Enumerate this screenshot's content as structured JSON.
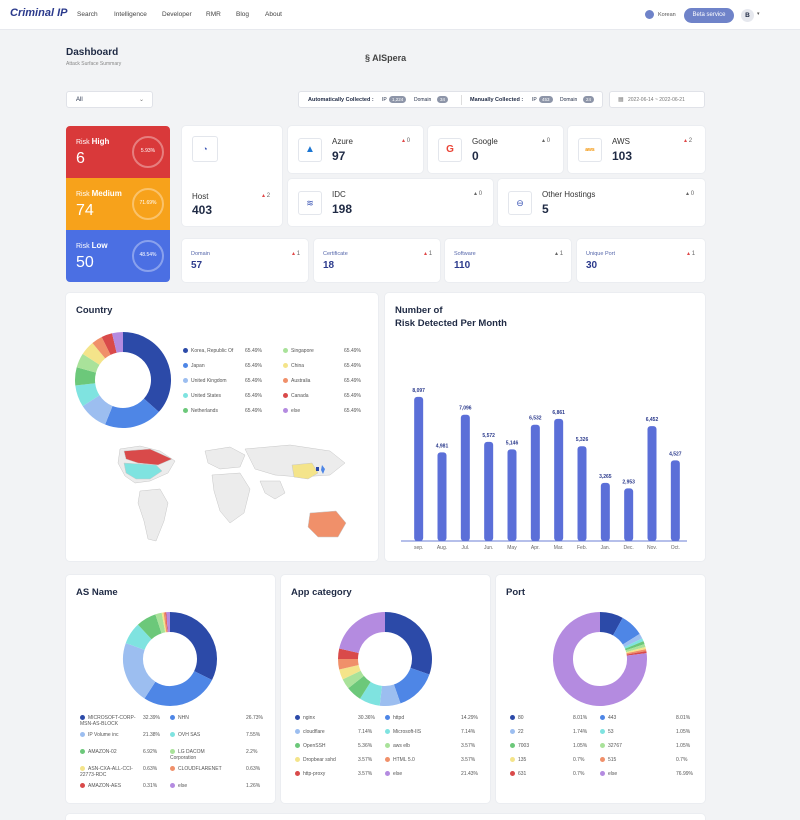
{
  "nav": {
    "logo": "Criminal IP",
    "links": [
      "Search",
      "Intelligence",
      "Developer",
      "RMR",
      "Blog",
      "About"
    ],
    "language": "Korean",
    "beta_button": "Beta service",
    "avatar": "B"
  },
  "header": {
    "title": "Dashboard",
    "subtitle": "Attack Surface Summary",
    "brand": "AISpera",
    "filter_value": "All",
    "auto_label": "Automatically Collected :",
    "auto_ip_label": "IP",
    "auto_ip": "1,224",
    "auto_domain_label": "Domain",
    "auto_domain": "34",
    "manual_label": "Manually Collected :",
    "manual_ip_label": "IP",
    "manual_ip": "453",
    "manual_domain_label": "Domain",
    "manual_domain": "24",
    "date_range": "2022-06-14 ~ 2022-06-21"
  },
  "risk": {
    "high": {
      "prefix": "Risk",
      "label": "High",
      "value": "6",
      "pct": "5.93%",
      "color": "#d9393a"
    },
    "medium": {
      "prefix": "Risk",
      "label": "Medium",
      "value": "74",
      "pct": "71.69%",
      "color": "#f7a21b"
    },
    "low": {
      "prefix": "Risk",
      "label": "Low",
      "value": "50",
      "pct": "48.54%",
      "color": "#4b6fe3"
    }
  },
  "assets": {
    "host": {
      "name": "Host",
      "value": "403",
      "delta": "2"
    },
    "azure": {
      "name": "Azure",
      "value": "97",
      "delta": "0"
    },
    "google": {
      "name": "Google",
      "value": "0",
      "delta": "0"
    },
    "aws": {
      "name": "AWS",
      "value": "103",
      "delta": "2",
      "icon_text": "aws"
    },
    "idc": {
      "name": "IDC",
      "value": "198",
      "delta": "0"
    },
    "other": {
      "name": "Other Hostings",
      "value": "5",
      "delta": "0"
    },
    "domain": {
      "name": "Domain",
      "value": "57",
      "delta": "1"
    },
    "certificate": {
      "name": "Certificate",
      "value": "18",
      "delta": "1"
    },
    "software": {
      "name": "Software",
      "value": "110",
      "delta": "1"
    },
    "port": {
      "name": "Unique Port",
      "value": "30",
      "delta": "1"
    }
  },
  "country": {
    "title": "Country",
    "legend": [
      {
        "name": "Korea, Republic Of",
        "pct": "65.49%",
        "color": "#2c4aa8"
      },
      {
        "name": "Japan",
        "pct": "65.49%",
        "color": "#4e86e6"
      },
      {
        "name": "United Kingdom",
        "pct": "65.49%",
        "color": "#9cbef0"
      },
      {
        "name": "United States",
        "pct": "65.49%",
        "color": "#7fe3e0"
      },
      {
        "name": "Netherlands",
        "pct": "65.49%",
        "color": "#6cc87a"
      },
      {
        "name": "Singapore",
        "pct": "65.49%",
        "color": "#a9e29a"
      },
      {
        "name": "China",
        "pct": "65.49%",
        "color": "#f4e48a"
      },
      {
        "name": "Australia",
        "pct": "65.49%",
        "color": "#f0906a"
      },
      {
        "name": "Canada",
        "pct": "65.49%",
        "color": "#d94a4a"
      },
      {
        "name": "else",
        "pct": "65.49%",
        "color": "#b48be0"
      }
    ]
  },
  "chart_data": [
    {
      "type": "bar",
      "title": "Number of Risk Detected Per Month",
      "categories": [
        "sep.",
        "Aug.",
        "Jul.",
        "Jun.",
        "May",
        "Apr.",
        "Mar.",
        "Feb.",
        "Jan.",
        "Dec.",
        "Nov.",
        "Oct."
      ],
      "values": [
        8097,
        4981,
        7096,
        5572,
        5146,
        6532,
        6861,
        5326,
        3265,
        2953,
        6452,
        4527
      ],
      "labels": [
        "8,097",
        "4,981",
        "7,096",
        "5,572",
        "5,146",
        "6,532",
        "6,861",
        "5,326",
        "3,265",
        "2,953",
        "6,452",
        "4,527"
      ],
      "ylim": [
        0,
        10000
      ]
    },
    {
      "type": "pie",
      "title": "Country",
      "values": [
        30,
        16,
        8,
        6,
        5,
        4,
        4,
        3,
        3,
        3
      ],
      "colors": [
        "#2c4aa8",
        "#4e86e6",
        "#9cbef0",
        "#7fe3e0",
        "#6cc87a",
        "#a9e29a",
        "#f4e48a",
        "#f0906a",
        "#d94a4a",
        "#b48be0"
      ]
    },
    {
      "type": "pie",
      "title": "AS Name",
      "values": [
        32.39,
        26.73,
        21.38,
        7.55,
        6.92,
        2.2,
        0.63,
        0.63,
        0.31,
        1.26
      ],
      "colors": [
        "#2c4aa8",
        "#4e86e6",
        "#9cbef0",
        "#7fe3e0",
        "#6cc87a",
        "#a9e29a",
        "#f4e48a",
        "#f0906a",
        "#d94a4a",
        "#b48be0"
      ]
    },
    {
      "type": "pie",
      "title": "App category",
      "values": [
        30.36,
        14.29,
        7.14,
        7.14,
        5.36,
        3.57,
        3.57,
        3.57,
        3.57,
        21.43
      ],
      "colors": [
        "#2c4aa8",
        "#4e86e6",
        "#9cbef0",
        "#7fe3e0",
        "#6cc87a",
        "#a9e29a",
        "#f4e48a",
        "#f0906a",
        "#d94a4a",
        "#b48be0"
      ]
    },
    {
      "type": "pie",
      "title": "Port",
      "values": [
        8.01,
        8.01,
        1.74,
        1.05,
        1.05,
        1.05,
        0.7,
        0.7,
        0.7,
        76.99
      ],
      "colors": [
        "#2c4aa8",
        "#4e86e6",
        "#9cbef0",
        "#7fe3e0",
        "#6cc87a",
        "#a9e29a",
        "#f4e48a",
        "#f0906a",
        "#d94a4a",
        "#b48be0"
      ]
    }
  ],
  "asname": {
    "title": "AS Name",
    "legend": [
      {
        "name": "MICROSOFT-CORP-MSN-AS-BLOCK",
        "pct": "32.39%",
        "color": "#2c4aa8"
      },
      {
        "name": "NHN",
        "pct": "26.73%",
        "color": "#4e86e6"
      },
      {
        "name": "IP Volume inc",
        "pct": "21.38%",
        "color": "#9cbef0"
      },
      {
        "name": "OVH SAS",
        "pct": "7.55%",
        "color": "#7fe3e0"
      },
      {
        "name": "AMAZON-02",
        "pct": "6.92%",
        "color": "#6cc87a"
      },
      {
        "name": "LG DACOM Corporation",
        "pct": "2.2%",
        "color": "#a9e29a"
      },
      {
        "name": "ASN-CXA-ALL-CCI-22773-RDC",
        "pct": "0.63%",
        "color": "#f4e48a"
      },
      {
        "name": "CLOUDFLARENET",
        "pct": "0.63%",
        "color": "#f0906a"
      },
      {
        "name": "AMAZON-AES",
        "pct": "0.31%",
        "color": "#d94a4a"
      },
      {
        "name": "else",
        "pct": "1.26%",
        "color": "#b48be0"
      }
    ]
  },
  "appcat": {
    "title": "App category",
    "legend": [
      {
        "name": "nginx",
        "pct": "30.36%",
        "color": "#2c4aa8"
      },
      {
        "name": "httpd",
        "pct": "14.29%",
        "color": "#4e86e6"
      },
      {
        "name": "cloudflare",
        "pct": "7.14%",
        "color": "#9cbef0"
      },
      {
        "name": "Microsoft-IIS",
        "pct": "7.14%",
        "color": "#7fe3e0"
      },
      {
        "name": "OpenSSH",
        "pct": "5.36%",
        "color": "#6cc87a"
      },
      {
        "name": "aws elb",
        "pct": "3.57%",
        "color": "#a9e29a"
      },
      {
        "name": "Dropbear sshd",
        "pct": "3.57%",
        "color": "#f4e48a"
      },
      {
        "name": "HTML 5.0",
        "pct": "3.57%",
        "color": "#f0906a"
      },
      {
        "name": "http-proxy",
        "pct": "3.57%",
        "color": "#d94a4a"
      },
      {
        "name": "else",
        "pct": "21.43%",
        "color": "#b48be0"
      }
    ]
  },
  "port": {
    "title": "Port",
    "legend": [
      {
        "name": "80",
        "pct": "8.01%",
        "color": "#2c4aa8"
      },
      {
        "name": "443",
        "pct": "8.01%",
        "color": "#4e86e6"
      },
      {
        "name": "22",
        "pct": "1.74%",
        "color": "#9cbef0"
      },
      {
        "name": "53",
        "pct": "1.05%",
        "color": "#7fe3e0"
      },
      {
        "name": "7003",
        "pct": "1.05%",
        "color": "#6cc87a"
      },
      {
        "name": "32767",
        "pct": "1.05%",
        "color": "#a9e29a"
      },
      {
        "name": "135",
        "pct": "0.7%",
        "color": "#f4e48a"
      },
      {
        "name": "515",
        "pct": "0.7%",
        "color": "#f0906a"
      },
      {
        "name": "631",
        "pct": "0.7%",
        "color": "#d94a4a"
      },
      {
        "name": "else",
        "pct": "76.99%",
        "color": "#b48be0"
      }
    ]
  },
  "riskmonth": {
    "title_line1": "Number of",
    "title_line2": "Risk Detected Per Month"
  }
}
